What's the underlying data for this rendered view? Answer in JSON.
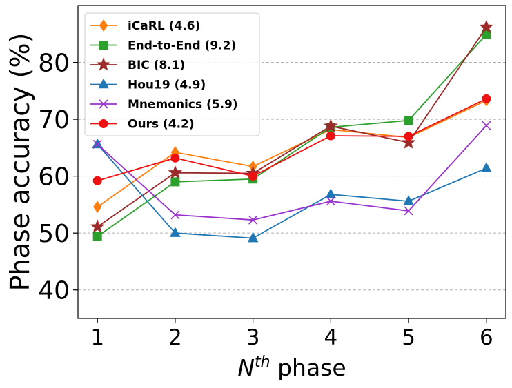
{
  "chart_data": {
    "type": "line",
    "title": "",
    "xlabel_base": "N",
    "xlabel_sup": "th",
    "xlabel_rest": " phase",
    "ylabel": "Phase accuracy (%)",
    "x": [
      1,
      2,
      3,
      4,
      5,
      6
    ],
    "x_ticks": [
      "1",
      "2",
      "3",
      "4",
      "5",
      "6"
    ],
    "y_ticks": [
      "40",
      "50",
      "60",
      "70",
      "80"
    ],
    "xlim": [
      0.75,
      6.25
    ],
    "ylim": [
      35,
      90
    ],
    "grid": "horizontal dashed",
    "legend_position": "top-left",
    "series": [
      {
        "name": "iCaRL (4.6)",
        "color": "#ff7f0e",
        "marker": "thin_diamond",
        "values": [
          54.6,
          64.2,
          61.7,
          68.2,
          66.8,
          73.3
        ]
      },
      {
        "name": "End-to-End (9.2)",
        "color": "#2ca02c",
        "marker": "square",
        "values": [
          49.4,
          59.0,
          59.5,
          68.6,
          69.8,
          84.9
        ]
      },
      {
        "name": "BIC (8.1)",
        "color": "#9b2a2a",
        "marker": "star",
        "values": [
          51.1,
          60.6,
          60.5,
          68.8,
          65.9,
          86.2
        ]
      },
      {
        "name": "Hou19 (4.9)",
        "color": "#1f77b4",
        "marker": "triangle",
        "values": [
          65.6,
          50.0,
          49.1,
          56.8,
          55.6,
          61.4
        ]
      },
      {
        "name": "Mnemonics (5.9)",
        "color": "#9932cc",
        "marker": "x",
        "values": [
          65.6,
          53.2,
          52.3,
          55.6,
          53.9,
          68.9
        ]
      },
      {
        "name": "Ours (4.2)",
        "color": "#ee1111",
        "marker": "circle",
        "values": [
          59.2,
          63.2,
          60.0,
          67.1,
          67.0,
          73.6
        ]
      }
    ]
  }
}
